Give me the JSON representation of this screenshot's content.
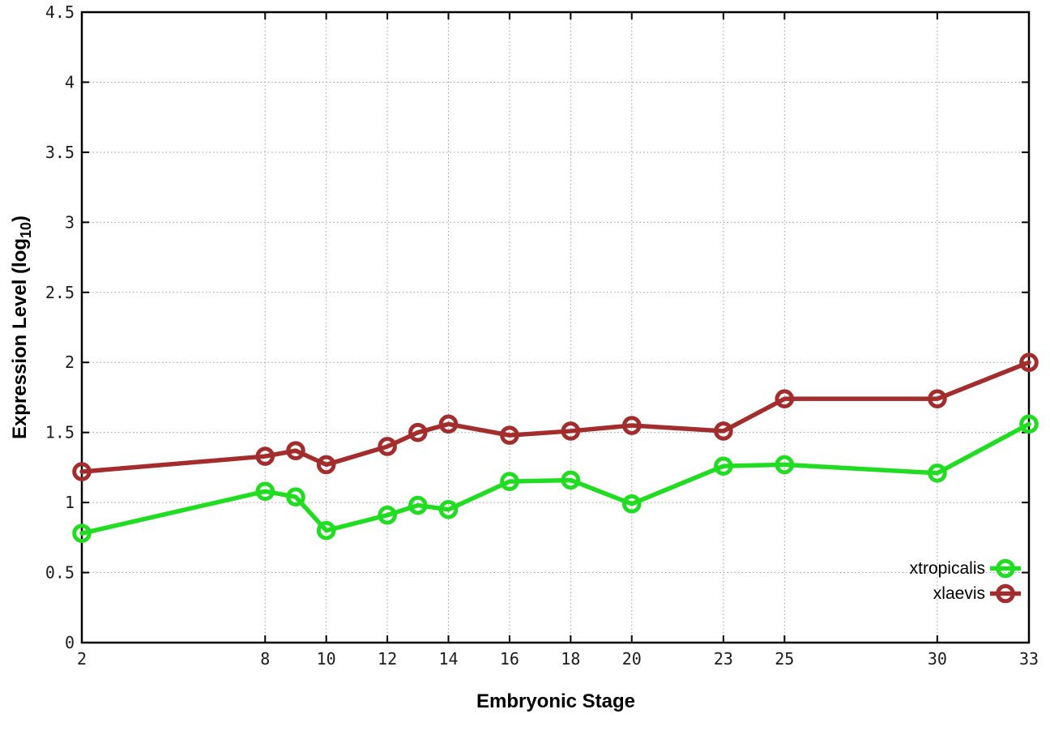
{
  "chart_data": {
    "type": "line",
    "title": "",
    "xlabel": "Embryonic Stage",
    "ylabel": "Expression Level (log10)",
    "ylabel_parts": {
      "main": "Expression Level (log",
      "sub": "10",
      "end": ")"
    },
    "xlim": [
      2,
      33
    ],
    "ylim": [
      0,
      4.5
    ],
    "xticks": [
      2,
      8,
      10,
      12,
      14,
      16,
      18,
      20,
      23,
      25,
      30,
      33
    ],
    "xtick_labels": [
      "2",
      "8",
      "10",
      "12",
      "14",
      "16",
      "18",
      "20",
      "23",
      "25",
      "30",
      "33"
    ],
    "yticks": [
      0,
      0.5,
      1,
      1.5,
      2,
      2.5,
      3,
      3.5,
      4,
      4.5
    ],
    "ytick_labels": [
      "0",
      "0.5",
      "1",
      "1.5",
      "2",
      "2.5",
      "3",
      "3.5",
      "4",
      "4.5"
    ],
    "grid": "dotted",
    "legend_position": "bottom-right-inside",
    "marker": "open-circle",
    "x": [
      2,
      8,
      9,
      10,
      12,
      13,
      14,
      16,
      18,
      20,
      23,
      25,
      30,
      33
    ],
    "series": [
      {
        "name": "xtropicalis",
        "color": "#21dd21",
        "values": [
          0.78,
          1.08,
          1.04,
          0.8,
          0.91,
          0.98,
          0.95,
          1.15,
          1.16,
          0.99,
          1.26,
          1.27,
          1.21,
          1.56
        ]
      },
      {
        "name": "xlaevis",
        "color": "#a32d2d",
        "values": [
          1.22,
          1.33,
          1.37,
          1.27,
          1.4,
          1.5,
          1.56,
          1.48,
          1.51,
          1.55,
          1.51,
          1.74,
          1.74,
          2.0
        ]
      }
    ]
  },
  "colors": {
    "background": "#ffffff",
    "border": "#000000",
    "grid": "#9e9e9e",
    "tick_text": "#1c1c1c"
  }
}
